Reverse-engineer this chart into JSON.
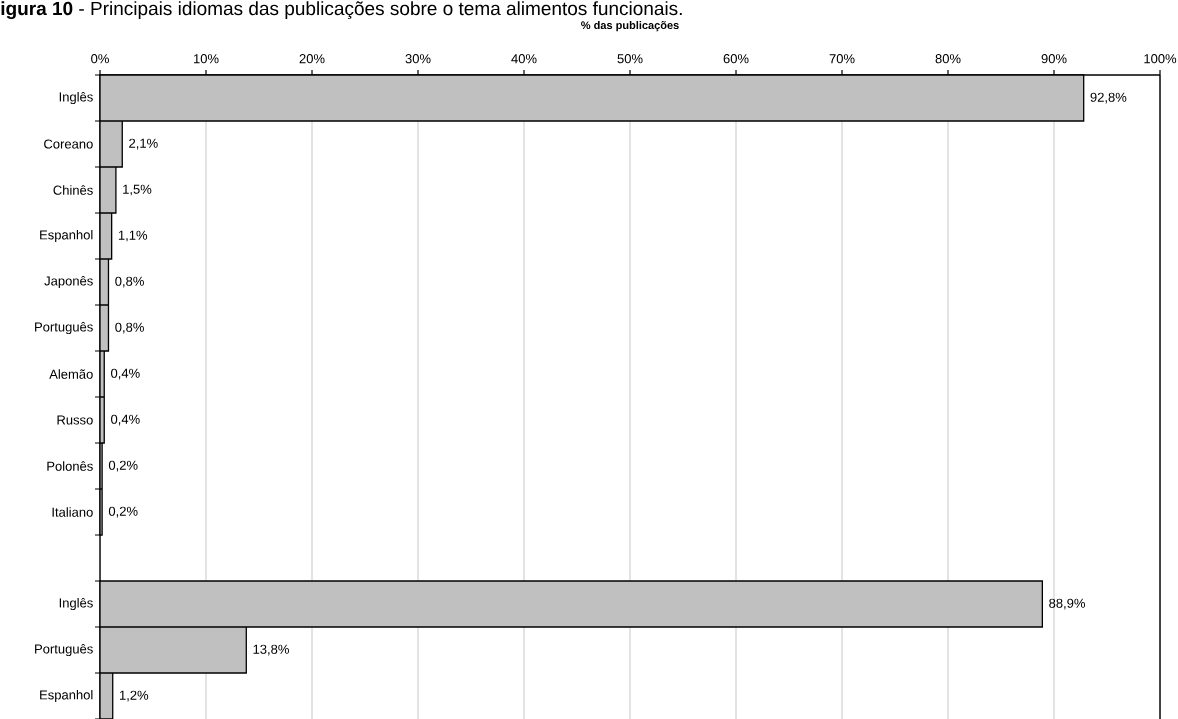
{
  "chart_data": {
    "type": "bar",
    "orientation": "horizontal",
    "title": "**igura 10** - Principais idiomas das publicações sobre o tema alimentos funcionais.",
    "xlabel": "% das publicações",
    "categories": [
      "Inglês",
      "Coreano",
      "Chinês",
      "Espanhol",
      "Japonês",
      "Português",
      "Alemão",
      "Russo",
      "Polonês",
      "Italiano",
      null,
      "Inglês",
      "Português",
      "Espanhol"
    ],
    "values": [
      92.8,
      2.1,
      1.5,
      1.1,
      0.8,
      0.8,
      0.4,
      0.4,
      0.2,
      0.2,
      null,
      88.9,
      13.8,
      1.2
    ],
    "value_labels": [
      "92,8%",
      "2,1%",
      "1,5%",
      "1,1%",
      "0,8%",
      "0,8%",
      "0,4%",
      "0,4%",
      "0,2%",
      "0,2%",
      null,
      "88,9%",
      "13,8%",
      "1,2%"
    ],
    "color": "#c0c0c0",
    "xlim": [
      0,
      100
    ],
    "xticks": [
      {
        "value": 0,
        "label": "0%"
      },
      {
        "value": 10,
        "label": "10%"
      },
      {
        "value": 20,
        "label": "20%"
      },
      {
        "value": 30,
        "label": "30%"
      },
      {
        "value": 40,
        "label": "40%"
      },
      {
        "value": 50,
        "label": "50%"
      },
      {
        "value": 60,
        "label": "60%"
      },
      {
        "value": 70,
        "label": "70%"
      },
      {
        "value": 80,
        "label": "80%"
      },
      {
        "value": 90,
        "label": "90%"
      },
      {
        "value": 100,
        "label": "100%"
      }
    ],
    "grid": "x"
  }
}
